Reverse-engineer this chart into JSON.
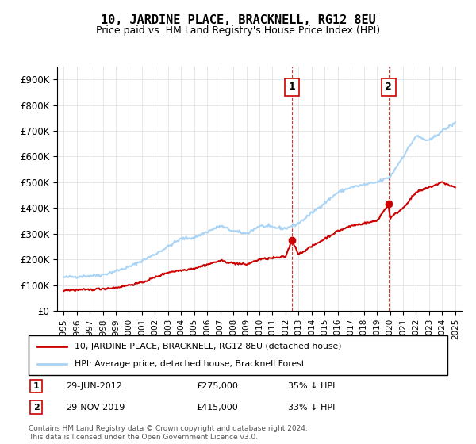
{
  "title": "10, JARDINE PLACE, BRACKNELL, RG12 8EU",
  "subtitle": "Price paid vs. HM Land Registry's House Price Index (HPI)",
  "legend_line1": "10, JARDINE PLACE, BRACKNELL, RG12 8EU (detached house)",
  "legend_line2": "HPI: Average price, detached house, Bracknell Forest",
  "annotation1_label": "1",
  "annotation1_date": "29-JUN-2012",
  "annotation1_price": "£275,000",
  "annotation1_pct": "35% ↓ HPI",
  "annotation2_label": "2",
  "annotation2_date": "29-NOV-2019",
  "annotation2_price": "£415,000",
  "annotation2_pct": "33% ↓ HPI",
  "footer": "Contains HM Land Registry data © Crown copyright and database right 2024.\nThis data is licensed under the Open Government Licence v3.0.",
  "hpi_color": "#aad4f5",
  "price_color": "#cc0000",
  "vline_color": "#cc0000",
  "background_color": "#ffffff",
  "ylim": [
    0,
    950000
  ],
  "yticks": [
    0,
    100000,
    200000,
    300000,
    400000,
    500000,
    600000,
    700000,
    800000,
    900000
  ],
  "ytick_labels": [
    "£0",
    "£100K",
    "£200K",
    "£300K",
    "£400K",
    "£500K",
    "£600K",
    "£700K",
    "£800K",
    "£900K"
  ],
  "anno1_x": 2012.5,
  "anno2_x": 2019.9,
  "anno1_price_y": 275000,
  "anno2_price_y": 415000,
  "xmin": 1994.5,
  "xmax": 2025.5
}
